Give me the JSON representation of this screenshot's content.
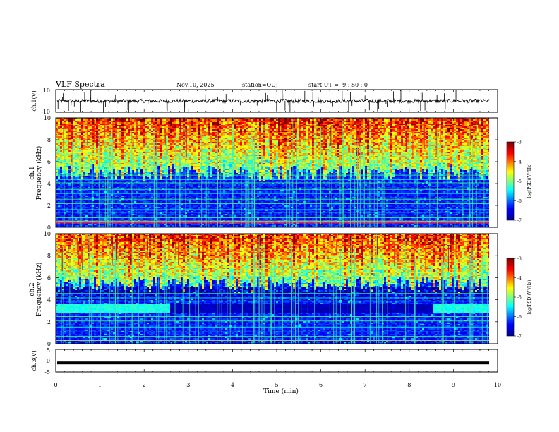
{
  "header": {
    "title": "VLF Spectra",
    "date": "Nov.10, 2025",
    "station": "station=OUJ",
    "start_ut": "start UT =  9 : 50 : 0"
  },
  "chart_data": [
    {
      "type": "line",
      "name": "ch1-waveform",
      "ylabel": "ch.1(V)",
      "ylim": [
        -10,
        10
      ],
      "yticks": [
        "10",
        "-10"
      ],
      "xlim": [
        0,
        10
      ],
      "baseline": 0
    },
    {
      "type": "heatmap",
      "name": "ch1-spectrogram",
      "ylabel_top": "ch.1",
      "ylabel": "Frequency (kHz)",
      "ylim": [
        0,
        10
      ],
      "yticks": [
        "0",
        "2",
        "4",
        "6",
        "8",
        "10"
      ],
      "xlim": [
        0,
        10
      ],
      "colorbar": {
        "label": "log(PSD)(V²/Hz)",
        "ticks": [
          "-3",
          "-4",
          "-5",
          "-6",
          "-7"
        ],
        "range": [
          -7,
          -3
        ]
      }
    },
    {
      "type": "heatmap",
      "name": "ch2-spectrogram",
      "ylabel_top": "ch.2",
      "ylabel": "Frequency (kHz)",
      "ylim": [
        0,
        10
      ],
      "yticks": [
        "0",
        "2",
        "4",
        "6",
        "8",
        "10"
      ],
      "xlim": [
        0,
        10
      ],
      "colorbar": {
        "label": "log(PSD)(V²/Hz)",
        "ticks": [
          "-3",
          "-4",
          "-5",
          "-6",
          "-7"
        ],
        "range": [
          -7,
          -3
        ]
      }
    },
    {
      "type": "line",
      "name": "ch3-waveform",
      "ylabel": "ch.3(V)",
      "ylim": [
        -5,
        5
      ],
      "yticks": [
        "5",
        "0",
        "-5"
      ],
      "xlim": [
        0,
        10
      ],
      "baseline": -1
    }
  ],
  "xaxis": {
    "label": "Time (min)",
    "ticks": [
      "0",
      "1",
      "2",
      "3",
      "4",
      "5",
      "6",
      "7",
      "8",
      "9",
      "10"
    ]
  },
  "colors": {
    "jet": [
      "#00008f",
      "#0000ff",
      "#00ffff",
      "#7fff7f",
      "#ffff00",
      "#ff0000",
      "#800000"
    ]
  }
}
